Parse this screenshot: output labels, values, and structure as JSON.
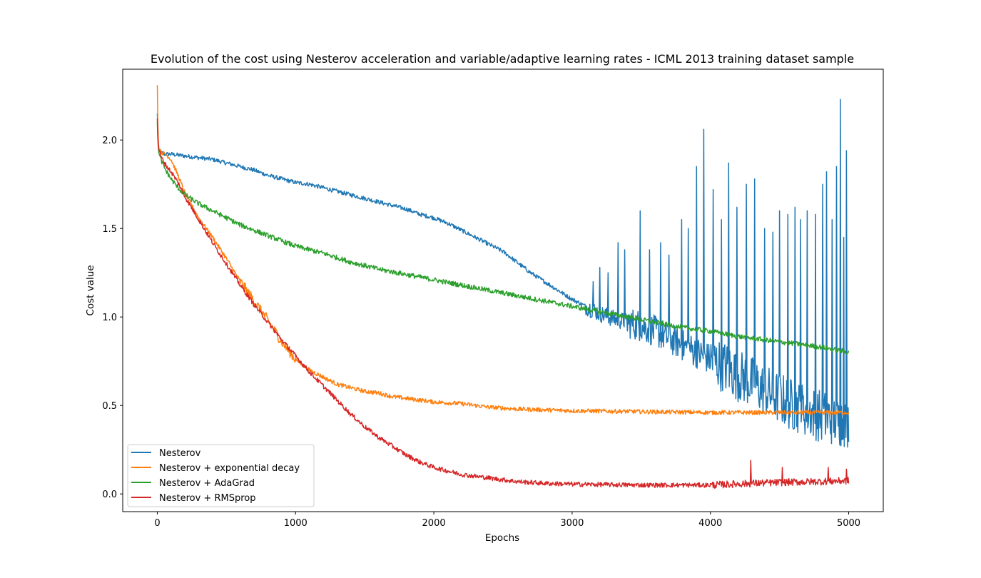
{
  "chart_data": {
    "type": "line",
    "title": "Evolution of the cost using Nesterov acceleration and variable/adaptive learning rates - ICML 2013 training dataset sample",
    "xlabel": "Epochs",
    "ylabel": "Cost value",
    "xlim": [
      -250,
      5250
    ],
    "ylim": [
      -0.1,
      2.4
    ],
    "xticks": [
      0,
      1000,
      2000,
      3000,
      4000,
      5000
    ],
    "xtick_labels": [
      "0",
      "1000",
      "2000",
      "3000",
      "4000",
      "5000"
    ],
    "yticks": [
      0.0,
      0.5,
      1.0,
      1.5,
      2.0
    ],
    "ytick_labels": [
      "0.0",
      "0.5",
      "1.0",
      "1.5",
      "2.0"
    ],
    "grid": false,
    "legend_position": "lower-left",
    "series": [
      {
        "name": "Nesterov",
        "color": "#1f77b4",
        "x": [
          0,
          5,
          10,
          20,
          50,
          100,
          200,
          300,
          400,
          500,
          600,
          700,
          800,
          900,
          1000,
          1100,
          1200,
          1300,
          1400,
          1500,
          1600,
          1700,
          1800,
          1900,
          2000,
          2100,
          2200,
          2300,
          2400,
          2500,
          2600,
          2700,
          2800,
          2900,
          3000,
          3100,
          3200,
          3300,
          3400,
          3500,
          3600,
          3700,
          3800,
          3900,
          4000,
          4100,
          4200,
          4300,
          4400,
          4500,
          4600,
          4700,
          4800,
          4900,
          5000
        ],
        "y": [
          2.15,
          2.0,
          1.95,
          1.93,
          1.92,
          1.92,
          1.91,
          1.9,
          1.89,
          1.87,
          1.85,
          1.83,
          1.8,
          1.78,
          1.76,
          1.75,
          1.73,
          1.71,
          1.69,
          1.67,
          1.65,
          1.63,
          1.61,
          1.58,
          1.56,
          1.53,
          1.49,
          1.45,
          1.41,
          1.37,
          1.31,
          1.25,
          1.2,
          1.15,
          1.1,
          1.06,
          1.02,
          0.99,
          0.97,
          0.95,
          0.92,
          0.88,
          0.84,
          0.8,
          0.76,
          0.72,
          0.67,
          0.63,
          0.58,
          0.54,
          0.5,
          0.47,
          0.44,
          0.42,
          0.4
        ],
        "noise": 0.012,
        "noise_ranges": [
          [
            3100,
            3400,
            0.05
          ],
          [
            3400,
            4000,
            0.09
          ],
          [
            4000,
            5000,
            0.15
          ]
        ],
        "spikes": [
          [
            3150,
            1.2
          ],
          [
            3200,
            1.28
          ],
          [
            3260,
            1.25
          ],
          [
            3330,
            1.42
          ],
          [
            3380,
            1.38
          ],
          [
            3490,
            1.6
          ],
          [
            3560,
            1.38
          ],
          [
            3640,
            1.42
          ],
          [
            3700,
            1.35
          ],
          [
            3790,
            1.55
          ],
          [
            3840,
            1.5
          ],
          [
            3900,
            1.85
          ],
          [
            3950,
            2.06
          ],
          [
            4020,
            1.72
          ],
          [
            4080,
            1.55
          ],
          [
            4130,
            1.87
          ],
          [
            4190,
            1.62
          ],
          [
            4260,
            1.75
          ],
          [
            4320,
            1.78
          ],
          [
            4390,
            1.5
          ],
          [
            4450,
            1.48
          ],
          [
            4500,
            1.6
          ],
          [
            4560,
            1.58
          ],
          [
            4610,
            1.62
          ],
          [
            4650,
            1.55
          ],
          [
            4700,
            1.6
          ],
          [
            4760,
            1.58
          ],
          [
            4810,
            1.75
          ],
          [
            4840,
            1.82
          ],
          [
            4880,
            1.55
          ],
          [
            4910,
            1.85
          ],
          [
            4940,
            2.23
          ],
          [
            4965,
            1.45
          ],
          [
            4985,
            1.94
          ]
        ]
      },
      {
        "name": "Nesterov + exponential decay",
        "color": "#ff7f0e",
        "x": [
          0,
          5,
          10,
          30,
          60,
          100,
          150,
          200,
          250,
          300,
          400,
          500,
          600,
          700,
          800,
          900,
          1000,
          1100,
          1200,
          1300,
          1400,
          1500,
          1600,
          1700,
          1800,
          1900,
          2000,
          2200,
          2400,
          2600,
          2800,
          3000,
          3500,
          4000,
          4500,
          5000
        ],
        "y": [
          2.31,
          2.05,
          1.95,
          1.93,
          1.92,
          1.89,
          1.8,
          1.7,
          1.63,
          1.56,
          1.45,
          1.33,
          1.2,
          1.09,
          0.98,
          0.86,
          0.76,
          0.7,
          0.66,
          0.62,
          0.6,
          0.58,
          0.57,
          0.55,
          0.54,
          0.53,
          0.52,
          0.51,
          0.49,
          0.48,
          0.475,
          0.47,
          0.465,
          0.46,
          0.46,
          0.46
        ],
        "noise": 0.012,
        "noise_ranges": [
          [
            600,
            1000,
            0.03
          ]
        ],
        "spikes": []
      },
      {
        "name": "Nesterov + AdaGrad",
        "color": "#2ca02c",
        "x": [
          0,
          5,
          10,
          30,
          60,
          100,
          150,
          200,
          300,
          400,
          500,
          600,
          700,
          800,
          900,
          1000,
          1200,
          1400,
          1600,
          1800,
          2000,
          2200,
          2400,
          2600,
          2800,
          3000,
          3200,
          3400,
          3600,
          3800,
          4000,
          4200,
          4400,
          4600,
          4800,
          5000
        ],
        "y": [
          2.1,
          1.98,
          1.93,
          1.88,
          1.83,
          1.78,
          1.73,
          1.69,
          1.64,
          1.6,
          1.56,
          1.52,
          1.49,
          1.46,
          1.43,
          1.4,
          1.36,
          1.31,
          1.27,
          1.24,
          1.21,
          1.18,
          1.15,
          1.12,
          1.09,
          1.06,
          1.03,
          1.0,
          0.97,
          0.94,
          0.92,
          0.89,
          0.87,
          0.85,
          0.83,
          0.8
        ],
        "noise": 0.014,
        "noise_ranges": [],
        "spikes": []
      },
      {
        "name": "Nesterov + RMSprop",
        "color": "#d62728",
        "x": [
          0,
          5,
          10,
          30,
          60,
          100,
          150,
          200,
          300,
          400,
          500,
          600,
          700,
          800,
          900,
          1000,
          1100,
          1200,
          1300,
          1400,
          1500,
          1600,
          1700,
          1800,
          1900,
          2000,
          2100,
          2200,
          2400,
          2600,
          2800,
          3000,
          3500,
          4000,
          4300,
          4500,
          4800,
          5000
        ],
        "y": [
          2.12,
          2.0,
          1.95,
          1.9,
          1.86,
          1.82,
          1.76,
          1.68,
          1.55,
          1.42,
          1.3,
          1.18,
          1.07,
          0.97,
          0.87,
          0.78,
          0.69,
          0.61,
          0.53,
          0.45,
          0.38,
          0.32,
          0.27,
          0.22,
          0.18,
          0.15,
          0.13,
          0.11,
          0.09,
          0.07,
          0.06,
          0.055,
          0.05,
          0.05,
          0.06,
          0.065,
          0.07,
          0.075
        ],
        "noise": 0.013,
        "noise_ranges": [
          [
            4000,
            5000,
            0.02
          ]
        ],
        "spikes": [
          [
            4290,
            0.19
          ],
          [
            4520,
            0.15
          ],
          [
            4850,
            0.15
          ],
          [
            4985,
            0.14
          ]
        ]
      }
    ]
  }
}
